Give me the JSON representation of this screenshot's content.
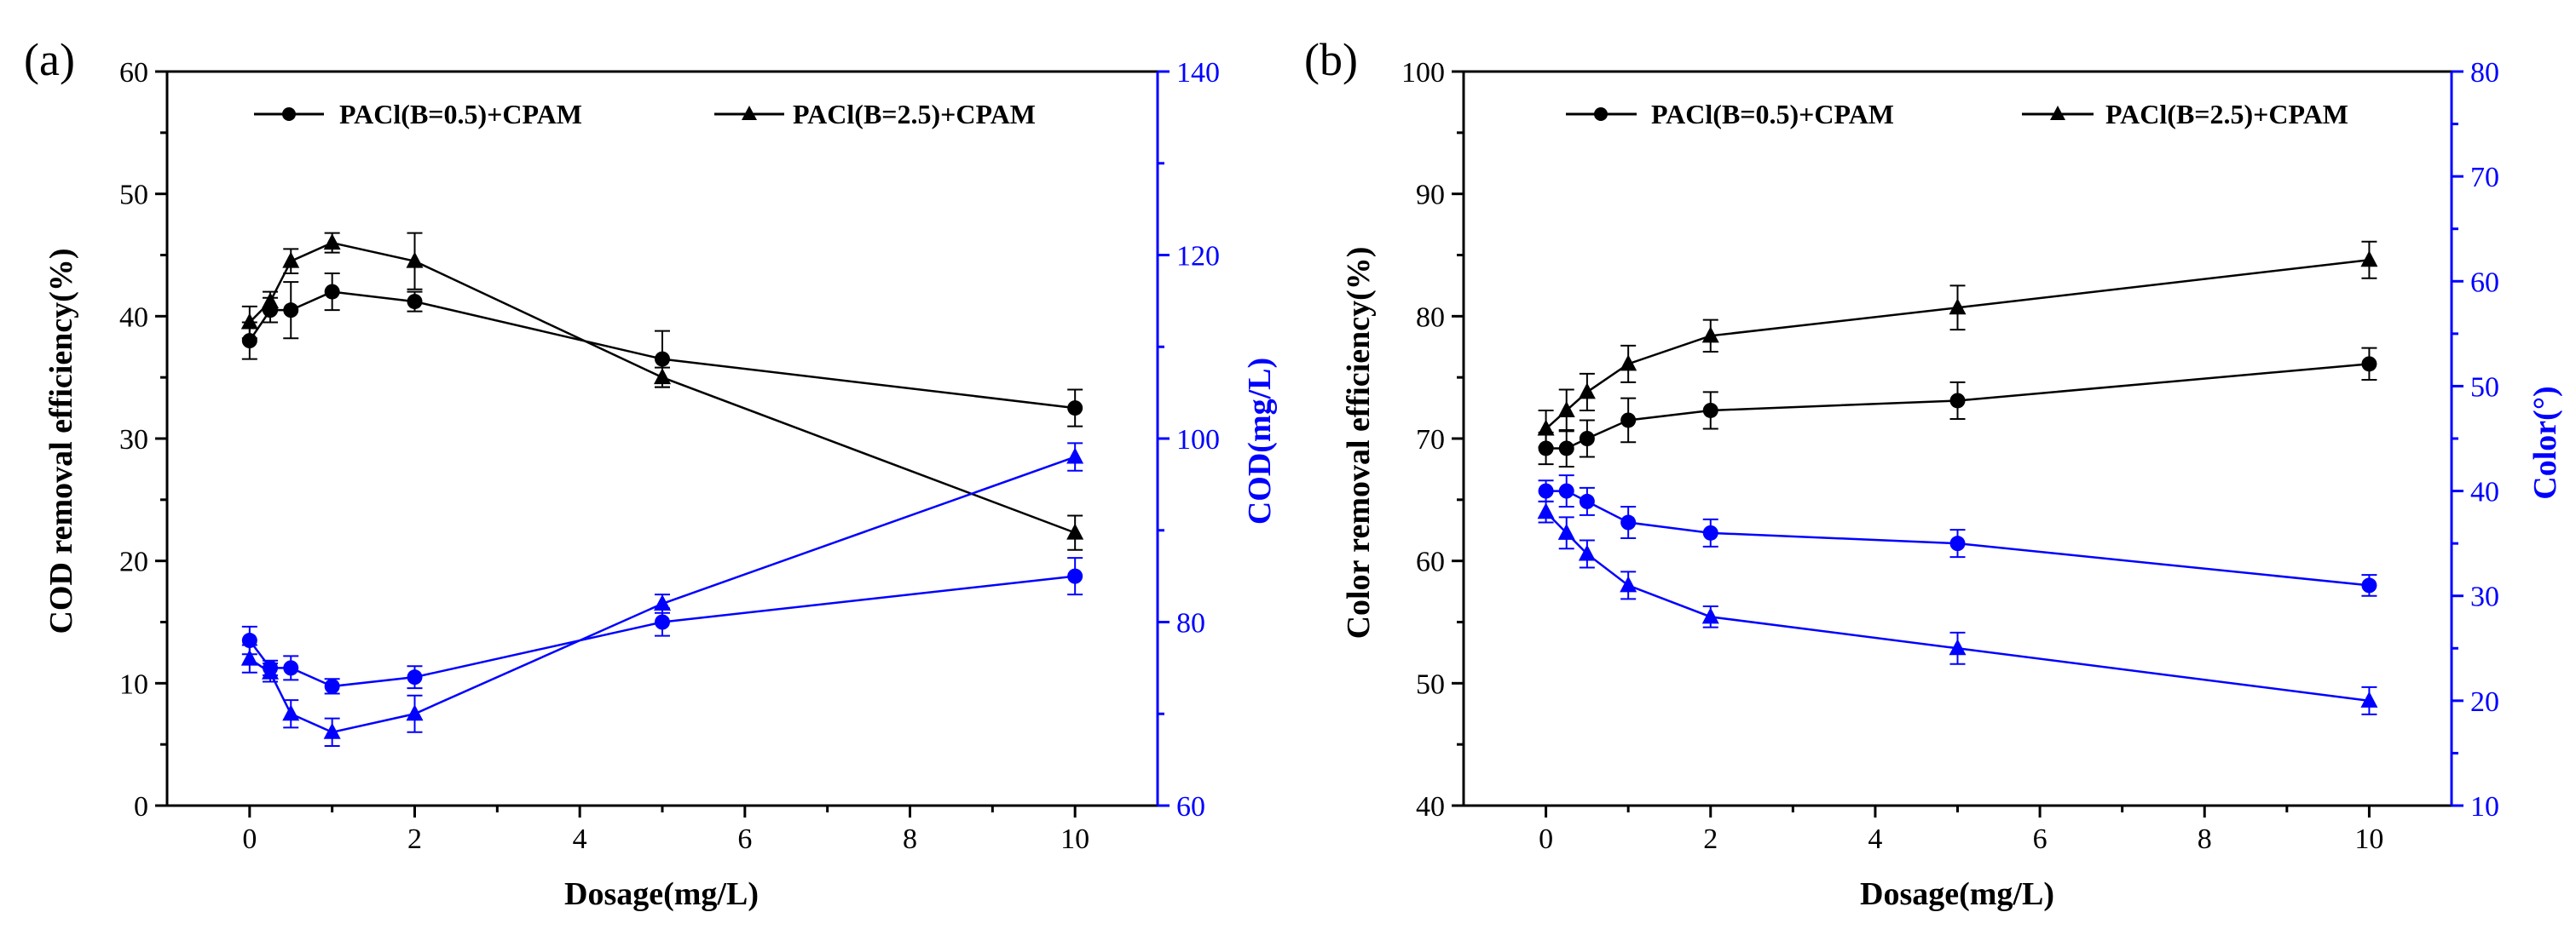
{
  "chart_data": [
    {
      "type": "line",
      "panel_label": "(a)",
      "xlabel": "Dosage(mg/L)",
      "ylabel": "COD removal efficiency(%)",
      "y2label": "COD(mg/L)",
      "xlim": [
        -1,
        11
      ],
      "ylim": [
        0,
        60
      ],
      "y2lim": [
        60,
        140
      ],
      "xticks": [
        0,
        2,
        4,
        6,
        8,
        10
      ],
      "yticks": [
        0,
        10,
        20,
        30,
        40,
        50,
        60
      ],
      "y2ticks": [
        60,
        80,
        100,
        120,
        140
      ],
      "legend_position": "top",
      "x": [
        0,
        0.25,
        0.5,
        1,
        2,
        5,
        10
      ],
      "series": [
        {
          "name": "PACl(B=0.5)+CPAM",
          "axis": "left",
          "marker": "circle",
          "color": "#000000",
          "values": [
            38.0,
            40.5,
            40.5,
            42.0,
            41.2,
            36.5,
            32.5
          ],
          "errors": [
            1.5,
            1.0,
            2.3,
            1.5,
            0.8,
            2.3,
            1.5
          ]
        },
        {
          "name": "PACl(B=2.5)+CPAM",
          "axis": "left",
          "marker": "triangle",
          "color": "#000000",
          "values": [
            39.5,
            41.2,
            44.5,
            46.0,
            44.5,
            35.0,
            22.3
          ],
          "errors": [
            1.3,
            0.8,
            1.0,
            0.8,
            2.3,
            0.8,
            1.4
          ]
        },
        {
          "name": "",
          "axis": "right",
          "marker": "circle",
          "color": "#0000ff",
          "values": [
            78.0,
            75.0,
            75.0,
            73.0,
            74.0,
            80.0,
            85.0
          ],
          "errors": [
            1.5,
            0.8,
            1.3,
            0.8,
            1.2,
            1.5,
            2.0
          ]
        },
        {
          "name": "",
          "axis": "right",
          "marker": "triangle",
          "color": "#0000ff",
          "values": [
            76.0,
            74.5,
            70.0,
            68.0,
            70.0,
            82.0,
            98.0
          ],
          "errors": [
            1.5,
            1.0,
            1.5,
            1.5,
            2.0,
            1.0,
            1.5
          ]
        }
      ]
    },
    {
      "type": "line",
      "panel_label": "(b)",
      "xlabel": "Dosage(mg/L)",
      "ylabel": "Color removal efficiency(%)",
      "y2label": "Color(°)",
      "xlim": [
        -1,
        11
      ],
      "ylim": [
        40,
        100
      ],
      "y2lim": [
        10,
        80
      ],
      "xticks": [
        0,
        2,
        4,
        6,
        8,
        10
      ],
      "yticks": [
        40,
        50,
        60,
        70,
        80,
        90,
        100
      ],
      "y2ticks": [
        10,
        20,
        30,
        40,
        50,
        60,
        70,
        80
      ],
      "legend_position": "top",
      "x": [
        0,
        0.25,
        0.5,
        1,
        2,
        5,
        10
      ],
      "series": [
        {
          "name": "PACl(B=0.5)+CPAM",
          "axis": "left",
          "marker": "circle",
          "color": "#000000",
          "values": [
            69.2,
            69.2,
            70.0,
            71.5,
            72.3,
            73.1,
            76.1
          ],
          "errors": [
            1.3,
            1.5,
            1.5,
            1.8,
            1.5,
            1.5,
            1.3
          ]
        },
        {
          "name": "PACl(B=2.5)+CPAM",
          "axis": "left",
          "marker": "triangle",
          "color": "#000000",
          "values": [
            70.8,
            72.3,
            73.8,
            76.1,
            78.4,
            80.7,
            84.6
          ],
          "errors": [
            1.5,
            1.7,
            1.5,
            1.5,
            1.3,
            1.8,
            1.5
          ]
        },
        {
          "name": "",
          "axis": "right",
          "marker": "circle",
          "color": "#0000ff",
          "values": [
            40.0,
            40.0,
            39.0,
            37.0,
            36.0,
            35.0,
            31.0
          ],
          "errors": [
            1.0,
            1.5,
            1.3,
            1.5,
            1.3,
            1.3,
            1.0
          ]
        },
        {
          "name": "",
          "axis": "right",
          "marker": "triangle",
          "color": "#0000ff",
          "values": [
            38.0,
            36.0,
            34.0,
            31.0,
            28.0,
            25.0,
            20.0
          ],
          "errors": [
            1.0,
            1.5,
            1.3,
            1.3,
            1.0,
            1.5,
            1.3
          ]
        }
      ]
    }
  ]
}
